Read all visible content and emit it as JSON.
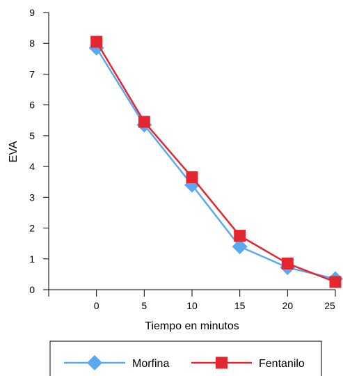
{
  "chart_data": {
    "type": "line",
    "title": "",
    "xlabel": "Tiempo en minutos",
    "ylabel": "EVA",
    "x": [
      0,
      5,
      10,
      15,
      20,
      25
    ],
    "x_ticks": [
      "0",
      "5",
      "10",
      "15",
      "20",
      "25"
    ],
    "y_ticks": [
      "0",
      "1",
      "2",
      "3",
      "4",
      "5",
      "6",
      "7",
      "8",
      "9"
    ],
    "xlim": [
      -5,
      25
    ],
    "ylim": [
      0,
      9
    ],
    "grid": false,
    "legend_position": "bottom",
    "series": [
      {
        "name": "Morfina",
        "color": "#5AA8F2",
        "marker": "diamond",
        "values": [
          7.85,
          5.35,
          3.4,
          1.4,
          0.72,
          0.35
        ]
      },
      {
        "name": "Fentanilo",
        "color": "#E3262F",
        "marker": "square",
        "values": [
          8.05,
          5.45,
          3.65,
          1.75,
          0.85,
          0.25
        ]
      }
    ]
  }
}
